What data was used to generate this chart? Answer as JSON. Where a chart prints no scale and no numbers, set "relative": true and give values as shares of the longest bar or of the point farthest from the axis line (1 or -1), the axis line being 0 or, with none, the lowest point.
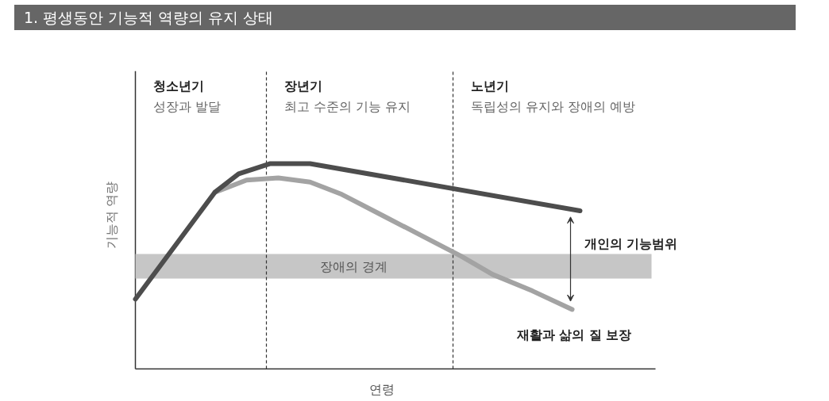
{
  "chart_data": {
    "type": "line",
    "relative": true,
    "title": "1. 평생동안 기능적 역량의 유지 상태",
    "xlabel": "연령",
    "ylabel": "기능적 역량",
    "categories": [
      null,
      null,
      null,
      null,
      null,
      null,
      null,
      null,
      null,
      null,
      null,
      null,
      null,
      null,
      null,
      null,
      null,
      null,
      null,
      null,
      null,
      null,
      null,
      null,
      null,
      null,
      null,
      null,
      null,
      null,
      null,
      null,
      null,
      null,
      null,
      null,
      null,
      null,
      null,
      null,
      null,
      null,
      null,
      null,
      null,
      null,
      null,
      null,
      null,
      null,
      null,
      null,
      null,
      null,
      null,
      null,
      null,
      null,
      null,
      null,
      null,
      null,
      null,
      null,
      null,
      null
    ],
    "series": [
      {
        "color": "#a3a3a3",
        "values": [
          null,
          null,
          null,
          null,
          null,
          null,
          null,
          null,
          null,
          null,
          0.86,
          null,
          null,
          null,
          0.92,
          null,
          null,
          null,
          0.93,
          null,
          null,
          null,
          0.91,
          null,
          null,
          null,
          0.85,
          null,
          null,
          null,
          null,
          0.75,
          null,
          null,
          null,
          null,
          0.65,
          null,
          null,
          null,
          null,
          0.55,
          null,
          null,
          null,
          0.46,
          null,
          null,
          null,
          null,
          0.38,
          null,
          null,
          null,
          null,
          0.29,
          null,
          null,
          null,
          null,
          null,
          null,
          null,
          null,
          null,
          null
        ]
      },
      {
        "color": "#4d4d4d",
        "values": [
          0.34,
          null,
          null,
          null,
          null,
          null,
          null,
          null,
          null,
          null,
          0.86,
          null,
          null,
          0.95,
          null,
          null,
          null,
          1,
          null,
          null,
          null,
          null,
          1,
          null,
          null,
          null,
          null,
          null,
          null,
          null,
          null,
          null,
          null,
          null,
          null,
          null,
          null,
          null,
          null,
          null,
          null,
          null,
          null,
          null,
          null,
          null,
          null,
          null,
          null,
          null,
          null,
          null,
          null,
          null,
          null,
          null,
          0.77,
          null,
          null,
          null,
          null,
          null,
          null,
          null,
          null,
          null
        ]
      }
    ],
    "bands": [
      {
        "axis": "y",
        "from": 0.44,
        "to": 0.56,
        "label": "장애의 경계",
        "color": "#c6c6c6"
      }
    ],
    "annotations": [
      "청소년기",
      "성장과 발달",
      "장년기",
      "최고 수준의 기능 유지",
      "노년기",
      "독립성의 유지와 장애의 예방",
      "개인의 기능범위",
      "재활과 삶의 질 보장"
    ]
  }
}
